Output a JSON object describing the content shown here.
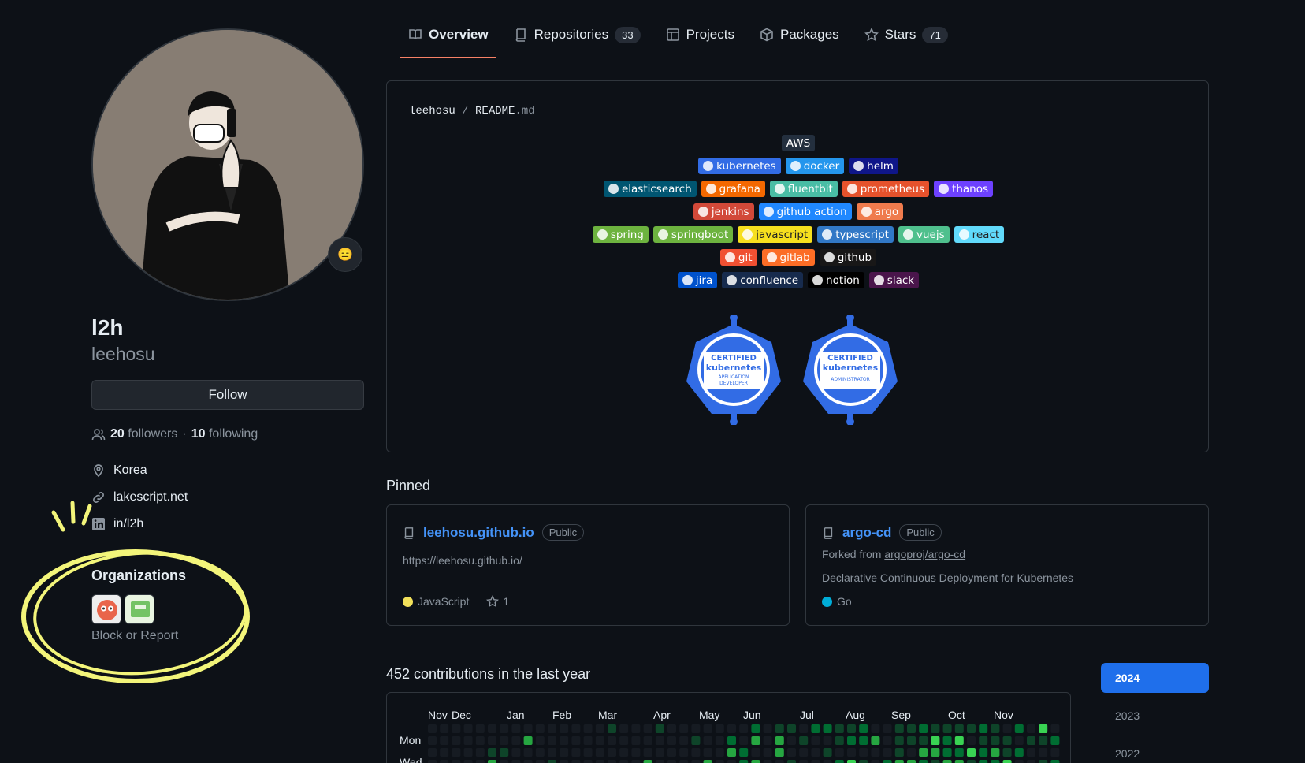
{
  "tabs": [
    {
      "label": "Overview",
      "icon": "book-icon",
      "active": true
    },
    {
      "label": "Repositories",
      "icon": "repo-icon",
      "count": "33"
    },
    {
      "label": "Projects",
      "icon": "table-icon"
    },
    {
      "label": "Packages",
      "icon": "package-icon"
    },
    {
      "label": "Stars",
      "icon": "star-icon",
      "count": "71"
    }
  ],
  "profile": {
    "name": "l2h",
    "login": "leehosu",
    "emoji": "😑",
    "follow_label": "Follow",
    "followers_count": "20",
    "followers_label": "followers",
    "sep": "·",
    "following_count": "10",
    "following_label": "following",
    "location": "Korea",
    "website": "lakescript.net",
    "linkedin": "in/l2h"
  },
  "organizations": {
    "title": "Organizations",
    "block_label": "Block or Report"
  },
  "readme": {
    "owner": "leehosu",
    "slash": "/",
    "file": "README",
    "ext": ".md",
    "badge_rows": [
      [
        {
          "label": "AWS",
          "color": "#232f3e"
        }
      ],
      [
        {
          "label": "kubernetes",
          "color": "#326ce5"
        },
        {
          "label": "docker",
          "color": "#2496ed"
        },
        {
          "label": "helm",
          "color": "#0f1689"
        }
      ],
      [
        {
          "label": "elasticsearch",
          "color": "#005571"
        },
        {
          "label": "grafana",
          "color": "#f46800"
        },
        {
          "label": "fluentbit",
          "color": "#49bda5"
        },
        {
          "label": "prometheus",
          "color": "#e6522c"
        },
        {
          "label": "thanos",
          "color": "#6d41ff"
        }
      ],
      [
        {
          "label": "jenkins",
          "color": "#d24939"
        },
        {
          "label": "github action",
          "color": "#2088ff"
        },
        {
          "label": "argo",
          "color": "#ef7b4d"
        }
      ],
      [
        {
          "label": "spring",
          "color": "#6db33f"
        },
        {
          "label": "springboot",
          "color": "#6db33f"
        },
        {
          "label": "javascript",
          "color": "#f7df1e",
          "text": "#222"
        },
        {
          "label": "typescript",
          "color": "#3178c6"
        },
        {
          "label": "vuejs",
          "color": "#4fc08d"
        },
        {
          "label": "react",
          "color": "#61dafb",
          "text": "#222"
        }
      ],
      [
        {
          "label": "git",
          "color": "#f05032"
        },
        {
          "label": "gitlab",
          "color": "#fc6d26"
        },
        {
          "label": "github",
          "color": "#181717"
        }
      ],
      [
        {
          "label": "jira",
          "color": "#0052cc"
        },
        {
          "label": "confluence",
          "color": "#172b4d"
        },
        {
          "label": "notion",
          "color": "#000000"
        },
        {
          "label": "slack",
          "color": "#4a154b"
        }
      ]
    ],
    "certs": [
      {
        "line1": "CERTIFIED",
        "line2": "kubernetes",
        "line3": "APPLICATION",
        "line4": "DEVELOPER"
      },
      {
        "line1": "CERTIFIED",
        "line2": "kubernetes",
        "line3": "ADMINISTRATOR",
        "line4": ""
      }
    ]
  },
  "pinned": {
    "title": "Pinned",
    "cards": [
      {
        "name": "leehosu.github.io",
        "visibility": "Public",
        "desc": "https://leehosu.github.io/",
        "language": "JavaScript",
        "lang_color": "#f1e05a",
        "stars": "1"
      },
      {
        "name": "argo-cd",
        "visibility": "Public",
        "forked_prefix": "Forked from",
        "forked_repo": "argoproj/argo-cd",
        "desc": "Declarative Continuous Deployment for Kubernetes",
        "language": "Go",
        "lang_color": "#00add8"
      }
    ]
  },
  "contributions": {
    "title": "452 contributions in the last year",
    "months": [
      "Nov",
      "Dec",
      "Jan",
      "Feb",
      "Mar",
      "Apr",
      "May",
      "Jun",
      "Jul",
      "Aug",
      "Sep",
      "Oct",
      "Nov"
    ],
    "day_labels": [
      "Mon",
      "Wed"
    ],
    "years": [
      "2024",
      "2023",
      "2022"
    ]
  },
  "colors": {
    "accent": "#1f6feb",
    "link": "#4493f8",
    "tab_underline": "#f78166",
    "highlight": "#f3f57a"
  }
}
